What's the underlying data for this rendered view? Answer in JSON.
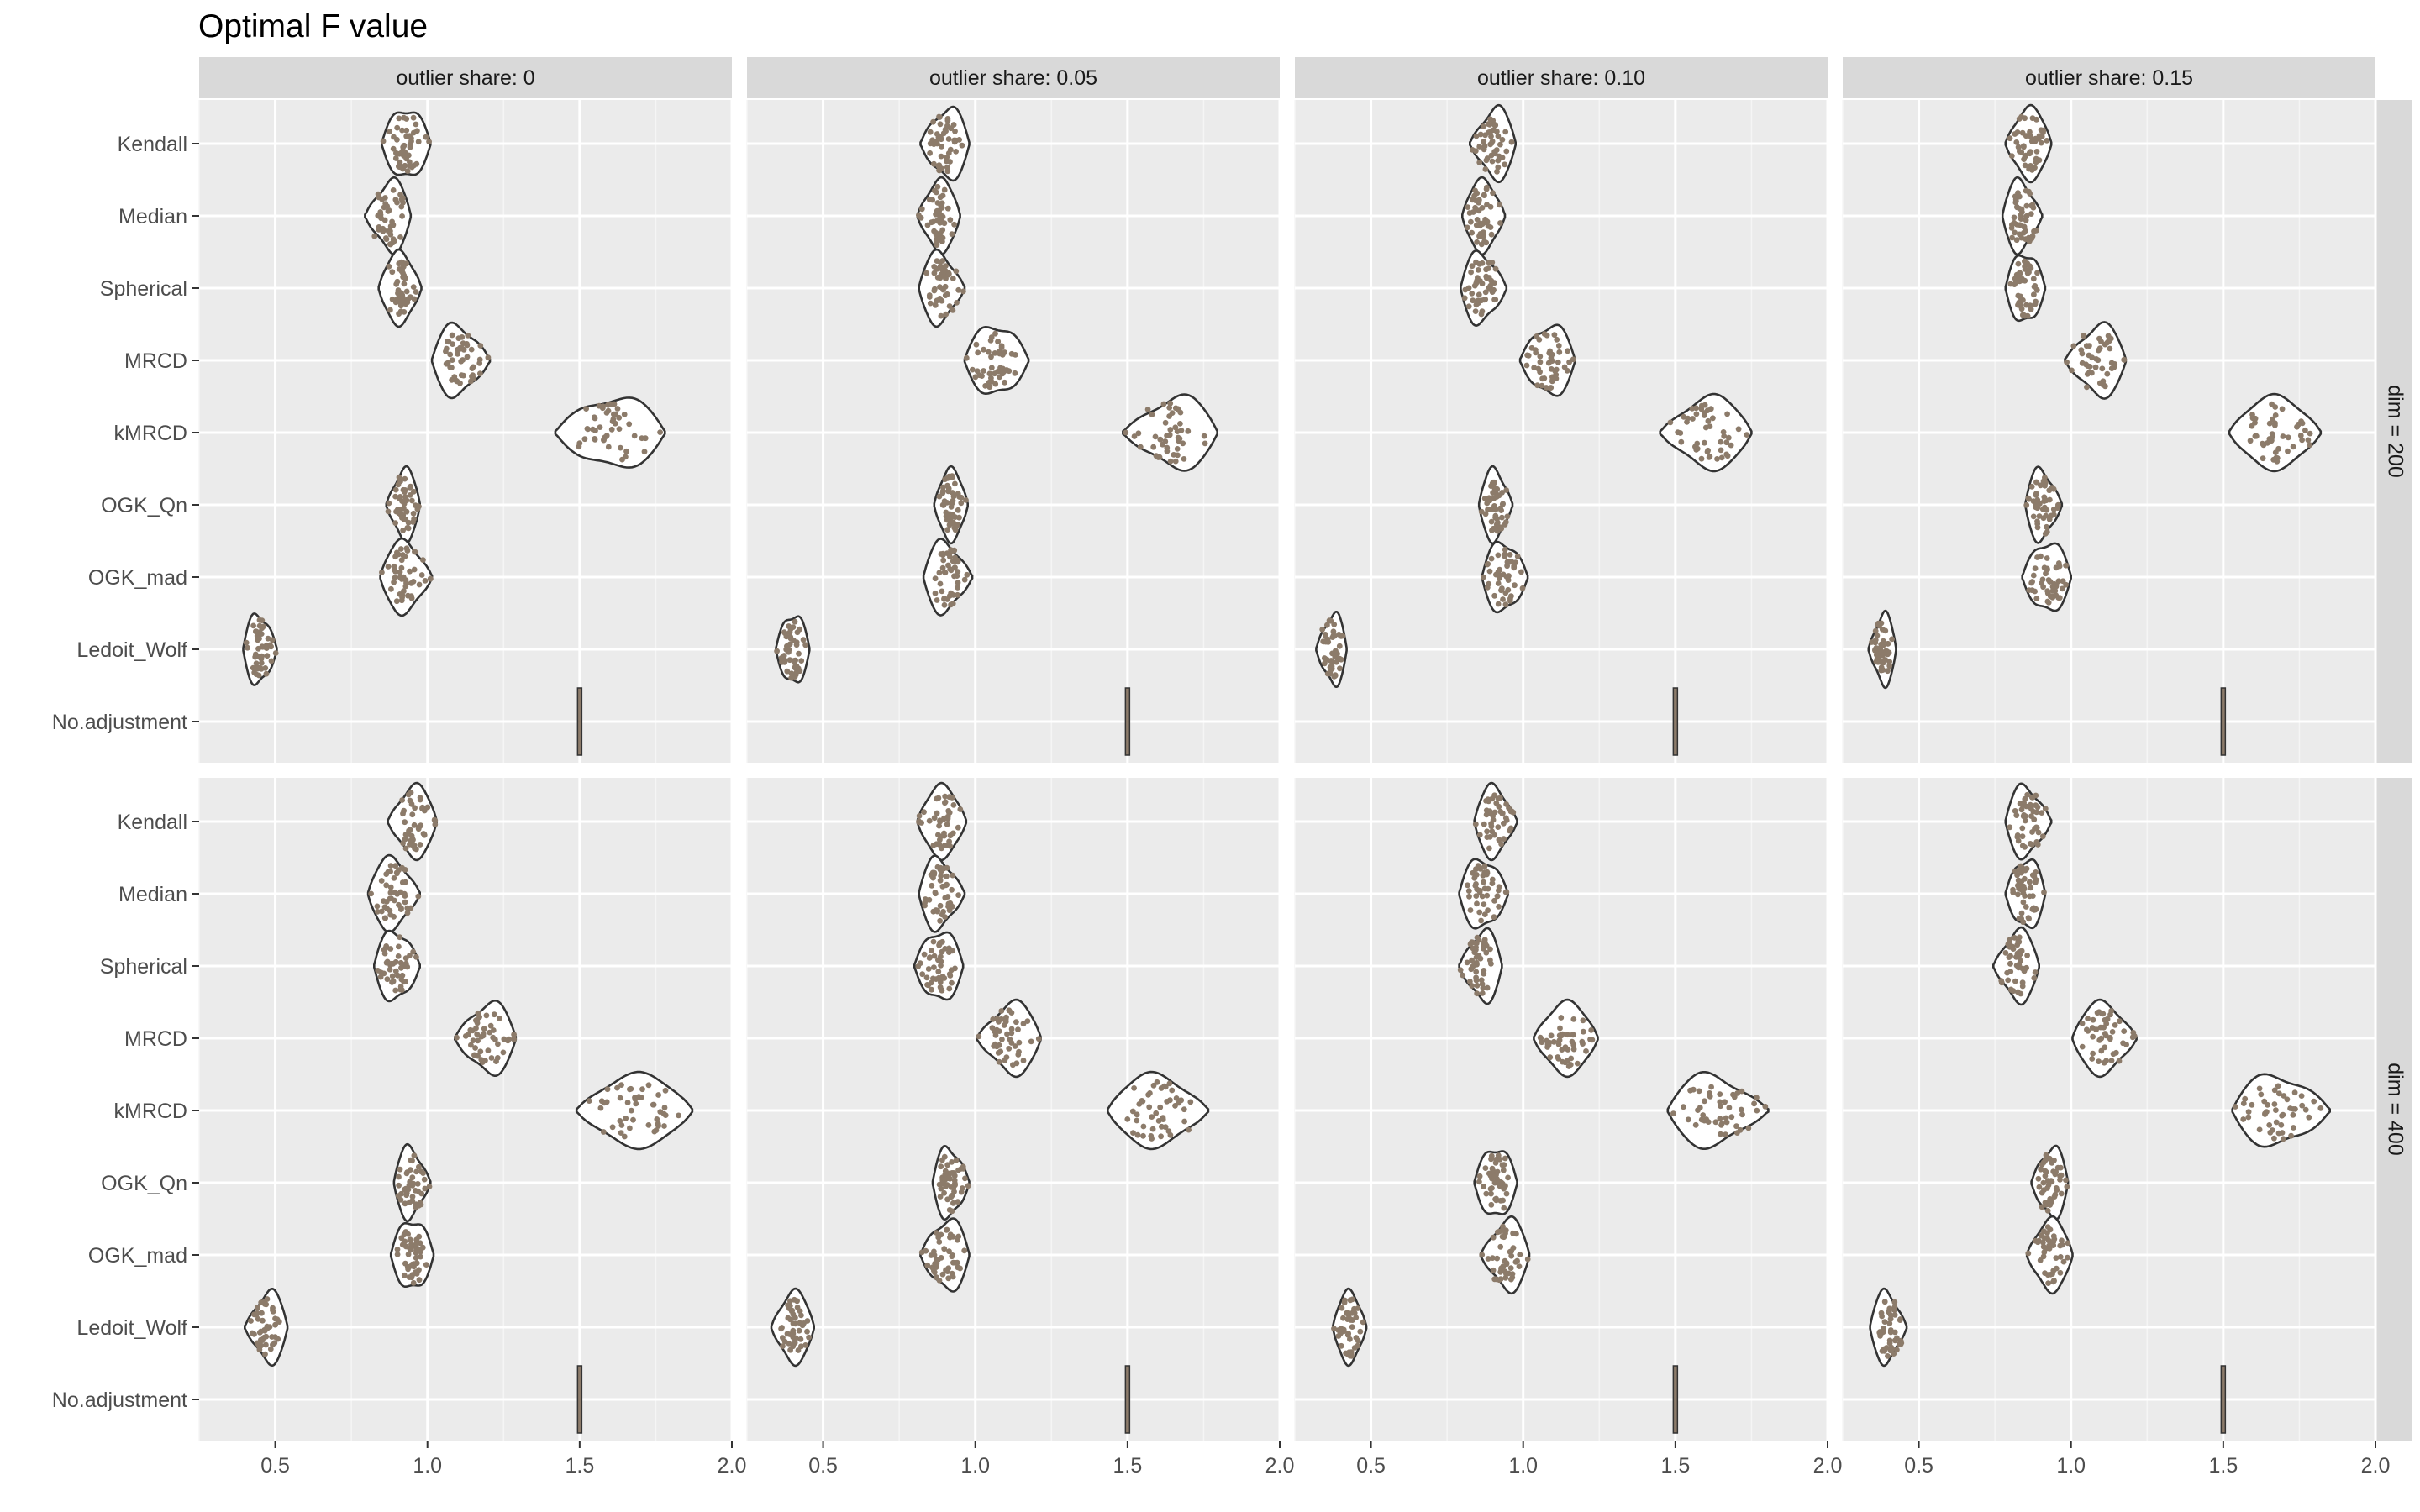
{
  "chart_data": {
    "type": "violin",
    "title": "Optimal F value",
    "xlabel": "",
    "ylabel": "",
    "xlim": [
      0.25,
      2.0
    ],
    "x_ticks": [
      0.5,
      1.0,
      1.5,
      2.0
    ],
    "x_tick_labels": [
      "0.5",
      "1.0",
      "1.5",
      "2.0"
    ],
    "grid": true,
    "categories": [
      "Kendall",
      "Median",
      "Spherical",
      "MRCD",
      "kMRCD",
      "OGK_Qn",
      "OGK_mad",
      "Ledoit_Wolf",
      "No.adjustment"
    ],
    "col_facets": [
      "outlier share: 0",
      "outlier share: 0.05",
      "outlier share: 0.10",
      "outlier share: 0.15"
    ],
    "row_facets": [
      "dim = 200",
      "dim = 400"
    ],
    "colors": {
      "points": "#8c7b6a",
      "outline": "#333333",
      "panel": "#ebebeb",
      "strip": "#d9d9d9",
      "grid": "#ffffff"
    },
    "panels": [
      [
        [
          [
            0.93,
            0.16
          ],
          [
            0.87,
            0.15
          ],
          [
            0.91,
            0.14
          ],
          [
            1.11,
            0.19
          ],
          [
            1.6,
            0.36
          ],
          [
            0.92,
            0.11
          ],
          [
            0.93,
            0.17
          ],
          [
            0.45,
            0.11
          ],
          [
            1.5,
            0
          ]
        ],
        [
          [
            0.9,
            0.16
          ],
          [
            0.88,
            0.14
          ],
          [
            0.89,
            0.15
          ],
          [
            1.07,
            0.21
          ],
          [
            1.64,
            0.31
          ],
          [
            0.92,
            0.11
          ],
          [
            0.91,
            0.16
          ],
          [
            0.4,
            0.11
          ],
          [
            1.5,
            0
          ]
        ],
        [
          [
            0.9,
            0.15
          ],
          [
            0.87,
            0.14
          ],
          [
            0.87,
            0.15
          ],
          [
            1.08,
            0.18
          ],
          [
            1.6,
            0.3
          ],
          [
            0.91,
            0.11
          ],
          [
            0.94,
            0.15
          ],
          [
            0.37,
            0.1
          ],
          [
            1.5,
            0
          ]
        ],
        [
          [
            0.86,
            0.15
          ],
          [
            0.84,
            0.13
          ],
          [
            0.85,
            0.13
          ],
          [
            1.08,
            0.2
          ],
          [
            1.67,
            0.3
          ],
          [
            0.91,
            0.12
          ],
          [
            0.92,
            0.16
          ],
          [
            0.38,
            0.09
          ],
          [
            1.5,
            0
          ]
        ]
      ],
      [
        [
          [
            0.95,
            0.16
          ],
          [
            0.89,
            0.17
          ],
          [
            0.9,
            0.15
          ],
          [
            1.19,
            0.2
          ],
          [
            1.68,
            0.38
          ],
          [
            0.95,
            0.12
          ],
          [
            0.95,
            0.14
          ],
          [
            0.47,
            0.14
          ],
          [
            1.5,
            0
          ]
        ],
        [
          [
            0.89,
            0.16
          ],
          [
            0.89,
            0.15
          ],
          [
            0.88,
            0.16
          ],
          [
            1.11,
            0.21
          ],
          [
            1.6,
            0.33
          ],
          [
            0.92,
            0.12
          ],
          [
            0.9,
            0.16
          ],
          [
            0.4,
            0.14
          ],
          [
            1.5,
            0
          ]
        ],
        [
          [
            0.91,
            0.14
          ],
          [
            0.87,
            0.16
          ],
          [
            0.86,
            0.14
          ],
          [
            1.14,
            0.21
          ],
          [
            1.64,
            0.33
          ],
          [
            0.91,
            0.14
          ],
          [
            0.94,
            0.16
          ],
          [
            0.43,
            0.11
          ],
          [
            1.5,
            0
          ]
        ],
        [
          [
            0.86,
            0.15
          ],
          [
            0.85,
            0.13
          ],
          [
            0.82,
            0.15
          ],
          [
            1.11,
            0.21
          ],
          [
            1.69,
            0.32
          ],
          [
            0.93,
            0.12
          ],
          [
            0.93,
            0.15
          ],
          [
            0.4,
            0.12
          ],
          [
            1.5,
            0
          ]
        ]
      ]
    ]
  }
}
